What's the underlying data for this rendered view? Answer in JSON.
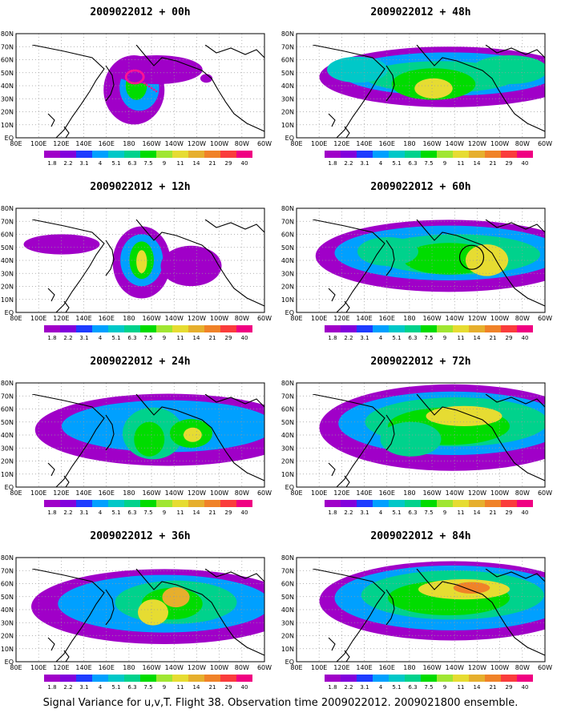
{
  "panels": [
    {
      "title": "2009022012 + 00h"
    },
    {
      "title": "2009022012 + 48h"
    },
    {
      "title": "2009022012 + 12h"
    },
    {
      "title": "2009022012 + 60h"
    },
    {
      "title": "2009022012 + 24h"
    },
    {
      "title": "2009022012 + 72h"
    },
    {
      "title": "2009022012 + 36h"
    },
    {
      "title": "2009022012 + 84h"
    }
  ],
  "lon_labels": [
    "80E",
    "100E",
    "120E",
    "140E",
    "160E",
    "180",
    "160W",
    "140W",
    "120W",
    "100W",
    "80W",
    "60W"
  ],
  "lat_labels": [
    "80N",
    "70N",
    "60N",
    "50N",
    "40N",
    "30N",
    "20N",
    "10N",
    "EQ"
  ],
  "colorbar": {
    "labels": [
      "1.8",
      "2.2",
      "3.1",
      "4",
      "5.1",
      "6.3",
      "7.5",
      "9",
      "11",
      "14",
      "21",
      "29",
      "40"
    ],
    "colors": [
      "#a000c8",
      "#8200dc",
      "#1e3cff",
      "#00a0ff",
      "#00c8c8",
      "#00d28c",
      "#00dc00",
      "#a0e632",
      "#e6dc32",
      "#e6af2d",
      "#f08228",
      "#fa3c3c",
      "#f00082"
    ]
  },
  "colors": {
    "land_line": "#000000",
    "grid": "#9a9a9a",
    "track": "#ff1493"
  },
  "footer": "Signal Variance for u,v,T. Flight 38. Observation time 2009022012. 2009021800 ensemble."
}
